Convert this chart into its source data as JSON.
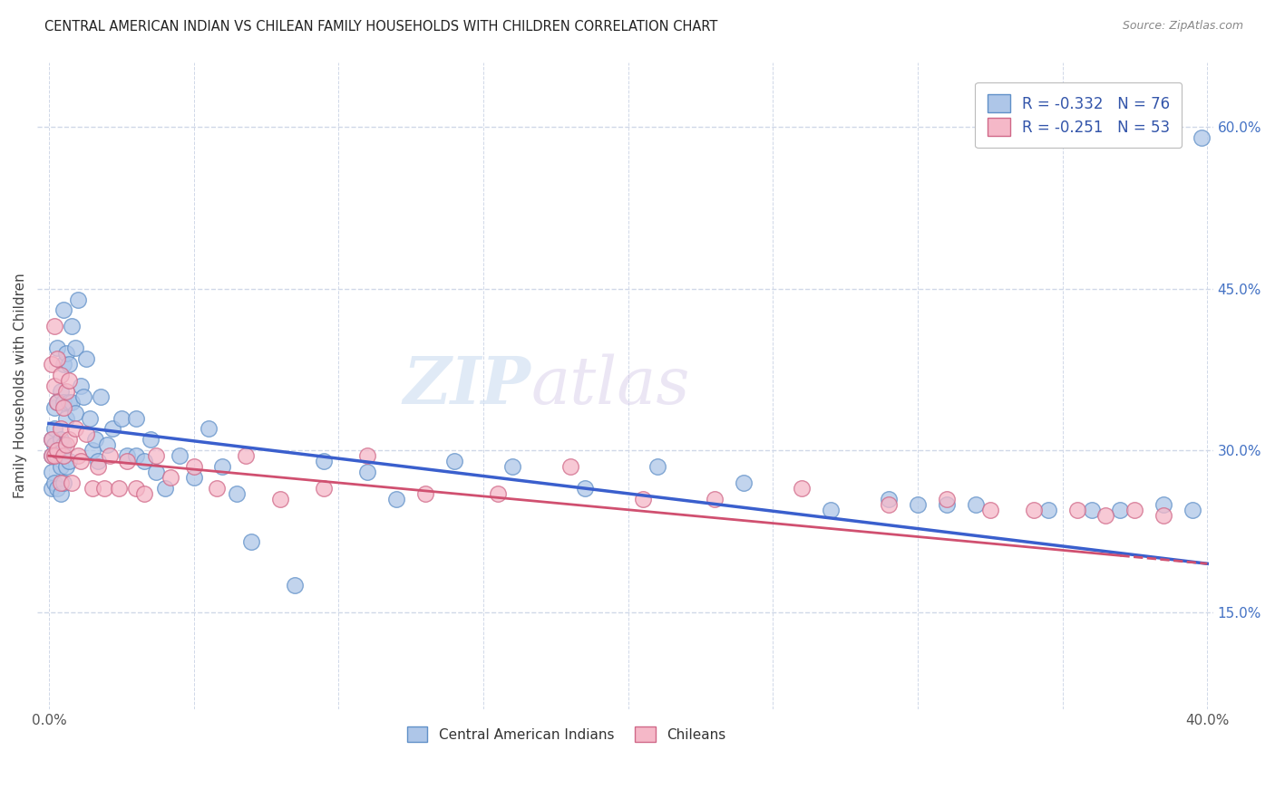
{
  "title": "CENTRAL AMERICAN INDIAN VS CHILEAN FAMILY HOUSEHOLDS WITH CHILDREN CORRELATION CHART",
  "source": "Source: ZipAtlas.com",
  "ylabel": "Family Households with Children",
  "xlabel": "",
  "xlim_min": -0.004,
  "xlim_max": 0.402,
  "ylim_min": 0.06,
  "ylim_max": 0.66,
  "xtick_vals": [
    0.0,
    0.05,
    0.1,
    0.15,
    0.2,
    0.25,
    0.3,
    0.35,
    0.4
  ],
  "xticklabels": [
    "0.0%",
    "",
    "",
    "",
    "",
    "",
    "",
    "",
    "40.0%"
  ],
  "ytick_positions": [
    0.15,
    0.3,
    0.45,
    0.6
  ],
  "ytick_labels": [
    "15.0%",
    "30.0%",
    "45.0%",
    "60.0%"
  ],
  "blue_R": -0.332,
  "blue_N": 76,
  "pink_R": -0.251,
  "pink_N": 53,
  "blue_color": "#aec6e8",
  "pink_color": "#f5b8c8",
  "blue_edge_color": "#6090c8",
  "pink_edge_color": "#d06888",
  "blue_line_color": "#3a5fcd",
  "pink_line_color": "#d05070",
  "watermark_color": "#c8daf0",
  "blue_line_y0": 0.325,
  "blue_line_y1": 0.195,
  "pink_line_y0": 0.295,
  "pink_line_y1": 0.195,
  "blue_x": [
    0.001,
    0.001,
    0.001,
    0.001,
    0.002,
    0.002,
    0.002,
    0.002,
    0.003,
    0.003,
    0.003,
    0.003,
    0.004,
    0.004,
    0.004,
    0.004,
    0.005,
    0.005,
    0.005,
    0.005,
    0.005,
    0.006,
    0.006,
    0.006,
    0.007,
    0.007,
    0.007,
    0.008,
    0.008,
    0.009,
    0.009,
    0.01,
    0.011,
    0.012,
    0.013,
    0.014,
    0.015,
    0.016,
    0.017,
    0.018,
    0.02,
    0.022,
    0.025,
    0.027,
    0.03,
    0.03,
    0.033,
    0.035,
    0.037,
    0.04,
    0.045,
    0.05,
    0.055,
    0.06,
    0.065,
    0.07,
    0.085,
    0.095,
    0.11,
    0.12,
    0.14,
    0.16,
    0.185,
    0.21,
    0.24,
    0.27,
    0.29,
    0.3,
    0.31,
    0.32,
    0.345,
    0.36,
    0.37,
    0.385,
    0.395,
    0.398
  ],
  "blue_y": [
    0.295,
    0.31,
    0.28,
    0.265,
    0.32,
    0.34,
    0.305,
    0.27,
    0.395,
    0.345,
    0.295,
    0.265,
    0.355,
    0.31,
    0.285,
    0.26,
    0.43,
    0.38,
    0.345,
    0.305,
    0.27,
    0.39,
    0.33,
    0.285,
    0.38,
    0.345,
    0.29,
    0.415,
    0.345,
    0.395,
    0.335,
    0.44,
    0.36,
    0.35,
    0.385,
    0.33,
    0.3,
    0.31,
    0.29,
    0.35,
    0.305,
    0.32,
    0.33,
    0.295,
    0.33,
    0.295,
    0.29,
    0.31,
    0.28,
    0.265,
    0.295,
    0.275,
    0.32,
    0.285,
    0.26,
    0.215,
    0.175,
    0.29,
    0.28,
    0.255,
    0.29,
    0.285,
    0.265,
    0.285,
    0.27,
    0.245,
    0.255,
    0.25,
    0.25,
    0.25,
    0.245,
    0.245,
    0.245,
    0.25,
    0.245,
    0.59
  ],
  "pink_x": [
    0.001,
    0.001,
    0.001,
    0.002,
    0.002,
    0.002,
    0.003,
    0.003,
    0.003,
    0.004,
    0.004,
    0.004,
    0.005,
    0.005,
    0.006,
    0.006,
    0.007,
    0.007,
    0.008,
    0.009,
    0.01,
    0.011,
    0.013,
    0.015,
    0.017,
    0.019,
    0.021,
    0.024,
    0.027,
    0.03,
    0.033,
    0.037,
    0.042,
    0.05,
    0.058,
    0.068,
    0.08,
    0.095,
    0.11,
    0.13,
    0.155,
    0.18,
    0.205,
    0.23,
    0.26,
    0.29,
    0.31,
    0.325,
    0.34,
    0.355,
    0.365,
    0.375,
    0.385
  ],
  "pink_y": [
    0.31,
    0.38,
    0.295,
    0.415,
    0.36,
    0.295,
    0.385,
    0.345,
    0.3,
    0.37,
    0.32,
    0.27,
    0.34,
    0.295,
    0.355,
    0.305,
    0.365,
    0.31,
    0.27,
    0.32,
    0.295,
    0.29,
    0.315,
    0.265,
    0.285,
    0.265,
    0.295,
    0.265,
    0.29,
    0.265,
    0.26,
    0.295,
    0.275,
    0.285,
    0.265,
    0.295,
    0.255,
    0.265,
    0.295,
    0.26,
    0.26,
    0.285,
    0.255,
    0.255,
    0.265,
    0.25,
    0.255,
    0.245,
    0.245,
    0.245,
    0.24,
    0.245,
    0.24
  ],
  "background_color": "#ffffff",
  "grid_color": "#d0d8e8",
  "title_color": "#222222",
  "axis_label_color": "#444444"
}
